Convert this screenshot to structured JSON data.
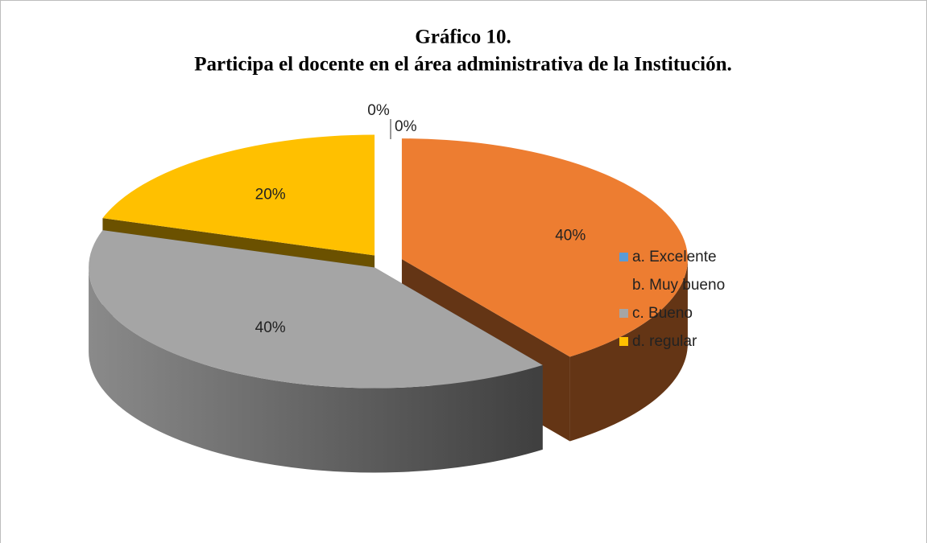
{
  "chart_data": {
    "type": "pie3d",
    "title": "Gráfico 10.",
    "subtitle": "Participa el docente en el área administrativa  de la Institución.",
    "categories": [
      "a. Excelente",
      "b. Muy bueno",
      "c. Bueno",
      "d. regular",
      null
    ],
    "values": [
      0,
      40,
      40,
      20,
      0
    ],
    "value_labels": [
      "0%",
      "40%",
      "40%",
      "20%",
      "0%"
    ],
    "colors": [
      "#5b9bd5",
      "#ed7d31",
      "#a5a5a5",
      "#ffc000",
      "#4472c4"
    ],
    "legend": "right"
  }
}
